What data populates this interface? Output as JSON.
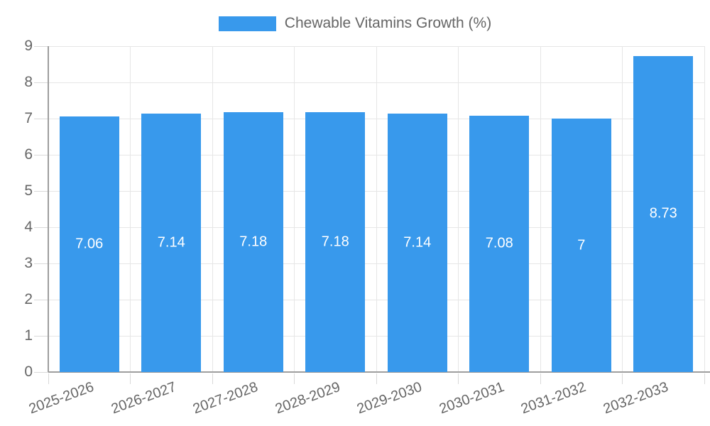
{
  "chart_data": {
    "type": "bar",
    "title": "",
    "legend": "Chewable Vitamins Growth (%)",
    "legend_position": "top-center",
    "categories": [
      "2025-2026",
      "2026-2027",
      "2027-2028",
      "2028-2029",
      "2029-2030",
      "2030-2031",
      "2031-2032",
      "2032-2033"
    ],
    "series": [
      {
        "name": "Chewable Vitamins Growth (%)",
        "values": [
          7.06,
          7.14,
          7.18,
          7.18,
          7.14,
          7.08,
          7,
          8.73
        ]
      }
    ],
    "value_labels": [
      "7.06",
      "7.14",
      "7.18",
      "7.18",
      "7.14",
      "7.08",
      "7",
      "8.73"
    ],
    "xlabel": "",
    "ylabel": "",
    "ylim": [
      0,
      9
    ],
    "y_ticks": [
      0,
      1,
      2,
      3,
      4,
      5,
      6,
      7,
      8,
      9
    ],
    "grid": "horizontal and vertical",
    "x_label_rotation_deg": -20,
    "colors": {
      "bar": "#3899EC",
      "value_label": "#FFFFFF",
      "axis_text": "#666666",
      "grid_line": "#E6E6E6",
      "axis_line": "#9E9E9E",
      "tick_mark": "#D9D9D9",
      "background": "#FFFFFF"
    }
  }
}
